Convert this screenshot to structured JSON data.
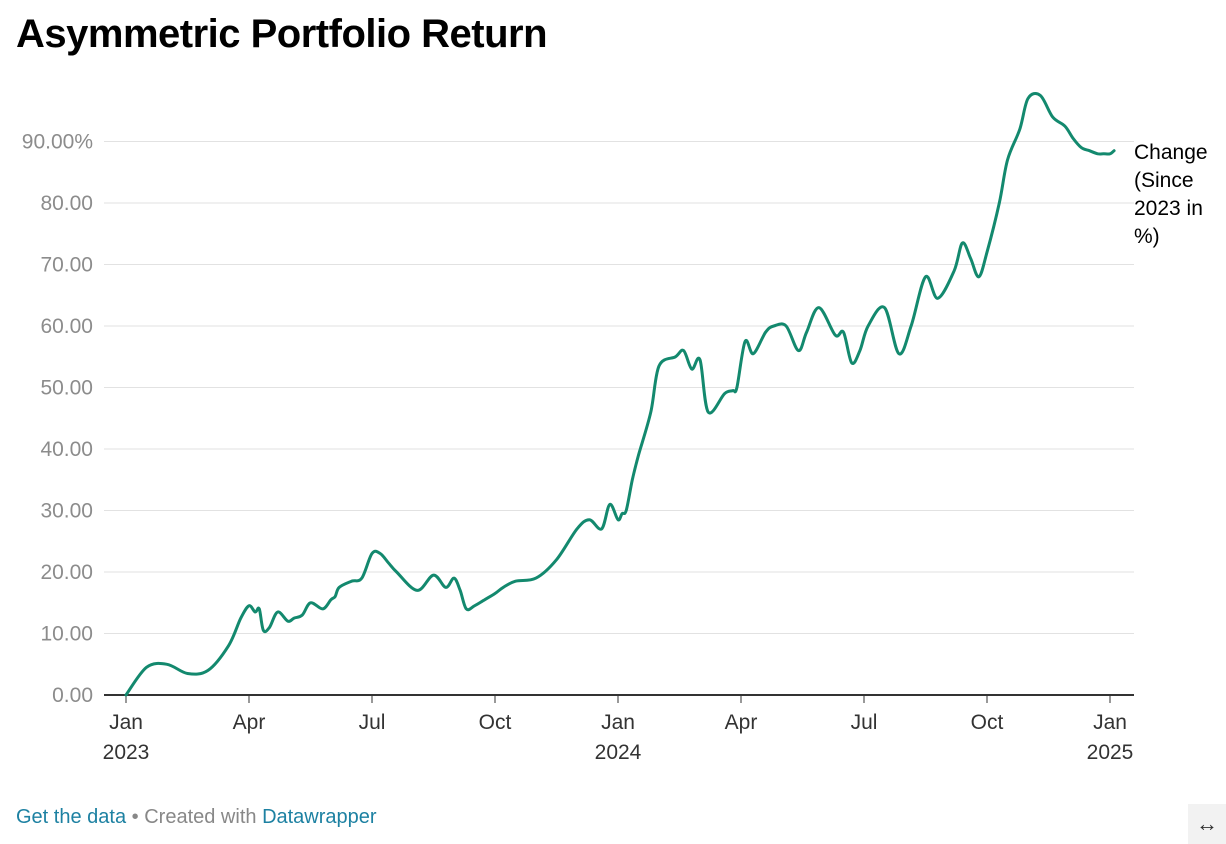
{
  "title": "Asymmetric Portfolio Return",
  "footer": {
    "get_data": "Get the data",
    "separator": "•",
    "created_with": "Created with",
    "datawrapper": "Datawrapper"
  },
  "resize_icon": "↔",
  "colors": {
    "line": "#13896e",
    "grid": "#e2e2e2",
    "axis": "#333333",
    "link": "#1d81a2"
  },
  "chart_data": {
    "type": "line",
    "title": "Asymmetric Portfolio Return",
    "xlabel": "",
    "ylabel": "",
    "ylim": [
      0,
      100
    ],
    "xlim": [
      0,
      24.3
    ],
    "y_ticks": [
      {
        "value": 0,
        "label": "0.00"
      },
      {
        "value": 10,
        "label": "10.00"
      },
      {
        "value": 20,
        "label": "20.00"
      },
      {
        "value": 30,
        "label": "30.00"
      },
      {
        "value": 40,
        "label": "40.00"
      },
      {
        "value": 50,
        "label": "50.00"
      },
      {
        "value": 60,
        "label": "60.00"
      },
      {
        "value": 70,
        "label": "70.00"
      },
      {
        "value": 80,
        "label": "80.00"
      },
      {
        "value": 90,
        "label": "90.00%"
      }
    ],
    "x_ticks": [
      {
        "value": 0,
        "label": "Jan",
        "sublabel": "2023"
      },
      {
        "value": 3,
        "label": "Apr"
      },
      {
        "value": 6,
        "label": "Jul"
      },
      {
        "value": 9,
        "label": "Oct"
      },
      {
        "value": 12,
        "label": "Jan",
        "sublabel": "2024"
      },
      {
        "value": 15,
        "label": "Apr"
      },
      {
        "value": 18,
        "label": "Jul"
      },
      {
        "value": 21,
        "label": "Oct"
      },
      {
        "value": 24,
        "label": "Jan",
        "sublabel": "2025"
      }
    ],
    "series": [
      {
        "name": "Change (Since 2023 in %)",
        "label_lines": [
          "Change",
          "(Since",
          "2023 in",
          "%)"
        ],
        "x": [
          0,
          0.5,
          1.0,
          1.5,
          2.0,
          2.5,
          2.8,
          3.0,
          3.15,
          3.25,
          3.35,
          3.5,
          3.7,
          3.95,
          4.1,
          4.3,
          4.5,
          4.8,
          5.0,
          5.1,
          5.2,
          5.5,
          5.75,
          6.0,
          6.2,
          6.4,
          6.6,
          7.1,
          7.5,
          7.8,
          8.0,
          8.15,
          8.3,
          8.5,
          8.75,
          9.0,
          9.2,
          9.5,
          10.0,
          10.5,
          11.0,
          11.3,
          11.6,
          11.8,
          12.0,
          12.1,
          12.2,
          12.35,
          12.5,
          12.8,
          13.0,
          13.4,
          13.6,
          13.8,
          14.0,
          14.2,
          14.6,
          14.8,
          14.9,
          15.1,
          15.3,
          15.6,
          15.8,
          16.1,
          16.4,
          16.6,
          16.9,
          17.3,
          17.5,
          17.7,
          17.9,
          18.1,
          18.5,
          18.85,
          19.15,
          19.5,
          19.8,
          20.2,
          20.4,
          20.6,
          20.8,
          21.0,
          21.3,
          21.5,
          21.8,
          22.0,
          22.3,
          22.6,
          22.9,
          23.1,
          23.3,
          23.5,
          23.7,
          23.85,
          24.0,
          24.1
        ],
        "values": [
          0,
          4.5,
          5,
          3.5,
          4,
          8,
          12.5,
          14.5,
          13.5,
          14,
          10.5,
          11,
          13.5,
          12,
          12.5,
          13,
          15,
          14,
          15.5,
          16,
          17.5,
          18.5,
          19,
          23,
          23,
          21.5,
          20,
          17,
          19.5,
          17.5,
          19,
          17,
          14,
          14.5,
          15.5,
          16.5,
          17.5,
          18.5,
          19,
          22,
          27,
          28.5,
          27,
          31,
          28.5,
          29.5,
          30,
          35,
          39,
          46,
          53.5,
          55,
          56,
          53,
          54.5,
          46,
          49,
          49.5,
          50,
          57.5,
          55.5,
          59,
          60,
          60,
          56,
          59,
          63,
          58.5,
          59,
          54,
          56,
          60,
          63,
          55.5,
          60,
          68,
          64.5,
          69,
          73.5,
          71,
          68,
          72,
          80,
          87,
          92,
          97,
          97.5,
          94,
          92.5,
          90.5,
          89,
          88.5,
          88,
          88,
          88,
          88.5
        ]
      }
    ]
  }
}
